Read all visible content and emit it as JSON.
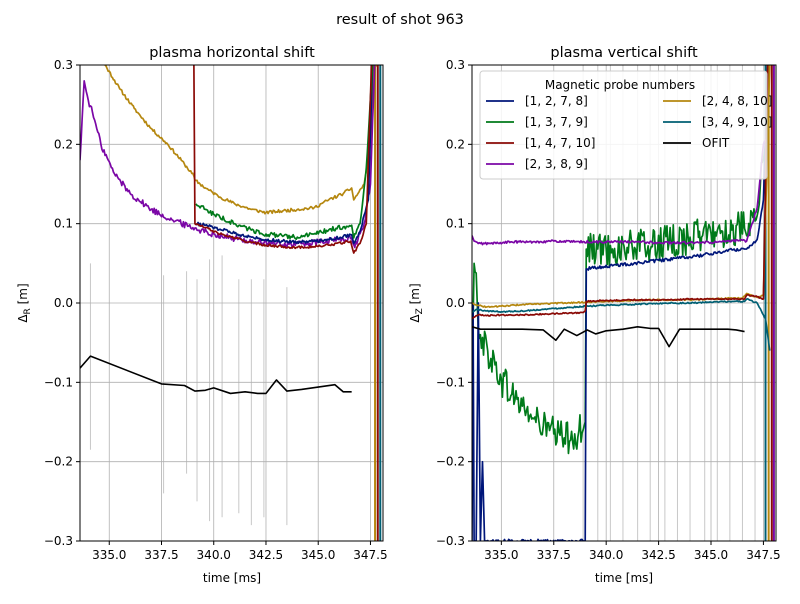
{
  "figure": {
    "suptitle": "result of shot 963"
  },
  "colors": {
    "c1278": "#00167a",
    "c1379": "#007a1a",
    "c14710": "#8a0a06",
    "c2389": "#7b07a6",
    "c24810": "#b5870f",
    "c34910": "#005f73",
    "ofit": "#000000",
    "vlines": "#c8c8c8"
  },
  "chart_data": [
    {
      "type": "line",
      "title": "plasma horizontal shift",
      "xlabel": "time [ms]",
      "ylabel_main": "Δ",
      "ylabel_sub": "R",
      "ylabel_unit": " [m]",
      "xlim": [
        333.6,
        348.1
      ],
      "ylim": [
        -0.3,
        0.3
      ],
      "xticks": [
        335.0,
        337.5,
        340.0,
        342.5,
        345.0,
        347.5
      ],
      "xtick_labels": [
        "335.0",
        "337.5",
        "340.0",
        "342.5",
        "345.0",
        "347.5"
      ],
      "yticks": [
        -0.3,
        -0.2,
        -0.1,
        0.0,
        0.1,
        0.2,
        0.3
      ],
      "ytick_labels": [
        "−0.3",
        "−0.2",
        "−0.1",
        "0.0",
        "0.1",
        "0.2",
        "0.3"
      ],
      "grid": true,
      "vertical_markers": [
        {
          "x": 334.1,
          "y0": -0.185,
          "y1": 0.05
        },
        {
          "x": 337.6,
          "y0": -0.24,
          "y1": 0.035
        },
        {
          "x": 338.7,
          "y0": -0.215,
          "y1": 0.04
        },
        {
          "x": 339.2,
          "y0": -0.25,
          "y1": 0.03
        },
        {
          "x": 339.8,
          "y0": -0.275,
          "y1": 0.055
        },
        {
          "x": 340.4,
          "y0": -0.27,
          "y1": 0.06
        },
        {
          "x": 341.2,
          "y0": -0.265,
          "y1": 0.03
        },
        {
          "x": 341.8,
          "y0": -0.28,
          "y1": 0.03
        },
        {
          "x": 342.4,
          "y0": -0.27,
          "y1": 0.03
        },
        {
          "x": 343.5,
          "y0": -0.28,
          "y1": 0.02
        }
      ],
      "series": [
        {
          "name": "[2, 4, 8, 10]",
          "color_key": "c24810",
          "noise": 0.002,
          "x": [
            333.8,
            334.3,
            334.8,
            335.5,
            336.2,
            337.0,
            337.8,
            338.6,
            339.05,
            339.1,
            339.6,
            340.2,
            341.0,
            341.8,
            342.5,
            343.3,
            344.0,
            344.8,
            345.5,
            346.2,
            346.6,
            346.7,
            347.2,
            347.5,
            347.65,
            347.8
          ],
          "y": [
            0.33,
            0.32,
            0.3,
            0.27,
            0.245,
            0.22,
            0.2,
            0.175,
            0.16,
            0.155,
            0.145,
            0.135,
            0.125,
            0.118,
            0.114,
            0.116,
            0.118,
            0.12,
            0.13,
            0.138,
            0.145,
            0.13,
            0.15,
            0.2,
            0.3,
            0.3
          ]
        },
        {
          "name": "[2, 3, 8, 9]",
          "color_key": "c2389",
          "noise": 0.004,
          "x": [
            333.6,
            333.8,
            334.0,
            334.2,
            334.6,
            335.2,
            336.0,
            337.0,
            338.0,
            339.0,
            340.0,
            341.0,
            342.0,
            342.8,
            343.6,
            344.4,
            345.2,
            346.0,
            346.6,
            346.75,
            347.2,
            347.5,
            347.7
          ],
          "y": [
            0.18,
            0.28,
            0.255,
            0.24,
            0.2,
            0.165,
            0.138,
            0.118,
            0.105,
            0.095,
            0.087,
            0.081,
            0.077,
            0.075,
            0.074,
            0.075,
            0.077,
            0.08,
            0.082,
            0.07,
            0.1,
            0.15,
            0.3
          ]
        },
        {
          "name": "[1, 2, 7, 8]",
          "color_key": "c1278",
          "noise": 0.002,
          "x": [
            339.15,
            339.6,
            340.3,
            341.0,
            341.8,
            342.5,
            343.3,
            344.0,
            344.8,
            345.5,
            346.2,
            346.6,
            346.7,
            347.0,
            347.4,
            347.6
          ],
          "y": [
            0.1,
            0.098,
            0.093,
            0.088,
            0.083,
            0.08,
            0.078,
            0.077,
            0.078,
            0.08,
            0.084,
            0.086,
            0.075,
            0.09,
            0.13,
            0.3
          ]
        },
        {
          "name": "[1, 3, 7, 9]",
          "color_key": "c1379",
          "noise": 0.003,
          "x": [
            339.15,
            339.6,
            340.3,
            341.0,
            341.8,
            342.5,
            343.3,
            344.0,
            344.8,
            345.5,
            346.2,
            346.6,
            346.7,
            347.0,
            347.3,
            347.6
          ],
          "y": [
            0.125,
            0.118,
            0.108,
            0.1,
            0.092,
            0.087,
            0.084,
            0.083,
            0.087,
            0.092,
            0.096,
            0.098,
            0.082,
            0.1,
            0.17,
            0.3
          ]
        },
        {
          "name": "[1, 4, 7, 10]",
          "color_key": "c14710",
          "noise": 0.0015,
          "x": [
            339.05,
            339.1,
            339.6,
            340.3,
            341.0,
            341.8,
            342.5,
            343.3,
            344.0,
            344.8,
            345.5,
            346.2,
            346.55,
            346.7,
            347.0,
            347.3,
            347.55
          ],
          "y": [
            0.3,
            0.1,
            0.095,
            0.087,
            0.082,
            0.076,
            0.073,
            0.071,
            0.07,
            0.071,
            0.073,
            0.076,
            0.078,
            0.063,
            0.075,
            0.1,
            0.3
          ]
        },
        {
          "name": "[3, 4, 9, 10]",
          "color_key": "c34910",
          "noise": 0,
          "x": [],
          "y": []
        },
        {
          "name": "OFIT",
          "color_key": "ofit",
          "noise": 0,
          "x": [
            333.6,
            334.1,
            337.5,
            338.6,
            339.1,
            339.6,
            340.0,
            340.8,
            341.5,
            342.1,
            342.5,
            343.0,
            343.5,
            344.2,
            345.0,
            345.8,
            346.2,
            346.6
          ],
          "y": [
            -0.082,
            -0.067,
            -0.102,
            -0.104,
            -0.111,
            -0.11,
            -0.107,
            -0.114,
            -0.112,
            -0.114,
            -0.114,
            -0.097,
            -0.111,
            -0.109,
            -0.106,
            -0.103,
            -0.112,
            -0.112
          ]
        }
      ],
      "edge_lines": [
        {
          "color_key": "c24810",
          "x": 347.72
        },
        {
          "color_key": "c14710",
          "x": 347.85
        },
        {
          "color_key": "c34910",
          "x": 347.97
        }
      ]
    },
    {
      "type": "line",
      "title": "plasma vertical shift",
      "xlabel": "time [ms]",
      "ylabel_main": "Δ",
      "ylabel_sub": "Z",
      "ylabel_unit": " [m]",
      "xlim": [
        333.6,
        348.1
      ],
      "ylim": [
        -0.3,
        0.3
      ],
      "xticks": [
        335.0,
        337.5,
        340.0,
        342.5,
        345.0,
        347.5
      ],
      "xtick_labels": [
        "335.0",
        "337.5",
        "340.0",
        "342.5",
        "345.0",
        "347.5"
      ],
      "yticks": [
        -0.3,
        -0.2,
        -0.1,
        0.0,
        0.1,
        0.2,
        0.3
      ],
      "ytick_labels": [
        "−0.3",
        "−0.2",
        "−0.1",
        "0.0",
        "0.1",
        "0.2",
        "0.3"
      ],
      "grid": true,
      "vertical_markers": [
        {
          "x": 338.9,
          "y0": -0.3,
          "y1": 0.3
        },
        {
          "x": 339.6,
          "y0": -0.3,
          "y1": 0.3
        },
        {
          "x": 340.2,
          "y0": -0.3,
          "y1": 0.3
        },
        {
          "x": 340.8,
          "y0": -0.3,
          "y1": 0.3
        },
        {
          "x": 341.5,
          "y0": -0.3,
          "y1": 0.3
        },
        {
          "x": 342.1,
          "y0": -0.3,
          "y1": 0.3
        },
        {
          "x": 342.8,
          "y0": -0.3,
          "y1": 0.3
        },
        {
          "x": 343.4,
          "y0": -0.3,
          "y1": 0.3
        },
        {
          "x": 344.0,
          "y0": -0.3,
          "y1": 0.3
        },
        {
          "x": 344.7,
          "y0": -0.3,
          "y1": 0.3
        },
        {
          "x": 345.3,
          "y0": -0.3,
          "y1": 0.3
        },
        {
          "x": 345.9,
          "y0": -0.3,
          "y1": 0.3
        },
        {
          "x": 346.5,
          "y0": -0.3,
          "y1": 0.3
        },
        {
          "x": 347.1,
          "y0": -0.3,
          "y1": 0.3
        }
      ],
      "legend": {
        "title": "Magnetic probe numbers",
        "location": "upper center",
        "columns": [
          [
            "[1, 2, 7, 8]",
            "[1, 3, 7, 9]",
            "[1, 4, 7, 10]",
            "[2, 3, 8, 9]"
          ],
          [
            "[2, 4, 8, 10]",
            "[3, 4, 9, 10]",
            "OFIT"
          ]
        ]
      },
      "series": [
        {
          "name": "[1, 3, 7, 9]",
          "color_key": "c1379",
          "noise": 0.022,
          "x": [
            333.6,
            333.7,
            333.85,
            334.0,
            334.5,
            335.0,
            335.5,
            336.0,
            336.5,
            337.0,
            337.5,
            338.0,
            338.5,
            338.9,
            339.0,
            339.05,
            339.6,
            340.3,
            341.0,
            342.0,
            343.0,
            344.0,
            345.0,
            346.0,
            346.6,
            346.7,
            347.2,
            347.6
          ],
          "y": [
            -0.1,
            0.05,
            0.0,
            -0.04,
            -0.07,
            -0.095,
            -0.115,
            -0.13,
            -0.145,
            -0.155,
            -0.165,
            -0.17,
            -0.165,
            -0.16,
            -0.15,
            0.068,
            0.068,
            0.068,
            0.07,
            0.072,
            0.076,
            0.083,
            0.088,
            0.092,
            0.094,
            0.085,
            0.11,
            0.2
          ]
        },
        {
          "name": "[1, 2, 7, 8]",
          "color_key": "c1278",
          "noise": 0.002,
          "x": [
            333.6,
            333.65,
            333.7,
            333.8,
            333.9,
            334.0,
            334.1,
            334.2,
            334.3,
            334.5,
            338.9,
            339.0,
            339.05,
            339.6,
            340.3,
            341.0,
            342.0,
            343.0,
            344.0,
            345.0,
            346.0,
            346.6,
            346.7,
            347.2,
            347.5,
            347.7
          ],
          "y": [
            -0.3,
            0.0,
            -0.3,
            -0.3,
            0.0,
            -0.3,
            -0.2,
            -0.3,
            -0.3,
            -0.3,
            -0.3,
            -0.3,
            0.043,
            0.045,
            0.047,
            0.049,
            0.052,
            0.055,
            0.058,
            0.062,
            0.067,
            0.068,
            0.068,
            0.08,
            0.13,
            0.3
          ]
        },
        {
          "name": "[2, 3, 8, 9]",
          "color_key": "c2389",
          "noise": 0.0015,
          "x": [
            333.6,
            333.7,
            333.9,
            334.5,
            335.5,
            336.5,
            337.5,
            338.5,
            339.5,
            340.5,
            341.5,
            342.5,
            343.5,
            344.5,
            345.5,
            346.5,
            346.7,
            347.2,
            347.5,
            347.7
          ],
          "y": [
            0.085,
            0.078,
            0.075,
            0.075,
            0.077,
            0.077,
            0.078,
            0.077,
            0.077,
            0.077,
            0.077,
            0.076,
            0.076,
            0.076,
            0.077,
            0.079,
            0.078,
            0.12,
            0.2,
            0.21
          ]
        },
        {
          "name": "[2, 4, 8, 10]",
          "color_key": "c24810",
          "noise": 0.0008,
          "x": [
            333.6,
            333.9,
            334.3,
            335.0,
            336.0,
            337.0,
            338.0,
            339.0,
            340.0,
            341.0,
            342.0,
            343.0,
            344.0,
            345.0,
            346.0,
            346.5,
            346.7,
            347.2,
            347.5,
            347.8
          ],
          "y": [
            0.0,
            -0.003,
            -0.005,
            -0.004,
            -0.002,
            -0.001,
            0.0,
            0.001,
            0.002,
            0.003,
            0.004,
            0.004,
            0.004,
            0.005,
            0.006,
            0.006,
            0.012,
            0.007,
            0.01,
            0.3
          ]
        },
        {
          "name": "[3, 4, 9, 10]",
          "color_key": "c34910",
          "noise": 0.0008,
          "x": [
            333.6,
            333.8,
            334.3,
            335.0,
            336.0,
            337.0,
            338.0,
            339.0,
            340.0,
            341.0,
            342.0,
            343.0,
            344.0,
            345.0,
            346.0,
            346.6,
            346.7,
            347.2,
            347.6,
            347.8
          ],
          "y": [
            -0.012,
            -0.008,
            -0.01,
            -0.011,
            -0.01,
            -0.008,
            -0.006,
            -0.004,
            -0.003,
            -0.002,
            -0.001,
            0.0,
            0.0,
            0.001,
            0.002,
            0.002,
            0.005,
            0.0,
            -0.02,
            -0.06
          ]
        },
        {
          "name": "[1, 4, 7, 10]",
          "color_key": "c14710",
          "noise": 0.0008,
          "x": [
            333.6,
            333.9,
            334.3,
            335.0,
            336.0,
            337.0,
            338.0,
            338.9,
            339.0,
            339.05,
            339.6,
            340.3,
            341.0,
            342.0,
            343.0,
            344.0,
            345.0,
            346.0,
            346.6,
            346.7,
            347.2,
            347.5,
            347.7
          ],
          "y": [
            -0.02,
            -0.015,
            -0.016,
            -0.015,
            -0.015,
            -0.014,
            -0.013,
            -0.012,
            -0.01,
            0.002,
            0.003,
            0.003,
            0.004,
            0.004,
            0.004,
            0.005,
            0.005,
            0.005,
            0.005,
            0.01,
            0.008,
            0.005,
            0.3
          ]
        },
        {
          "name": "OFIT",
          "color_key": "ofit",
          "noise": 0,
          "x": [
            333.6,
            334.0,
            335.0,
            336.0,
            337.0,
            337.6,
            338.0,
            338.6,
            339.1,
            339.5,
            340.0,
            340.8,
            341.5,
            342.1,
            342.5,
            343.0,
            343.5,
            344.2,
            345.0,
            345.8,
            346.2,
            346.6
          ],
          "y": [
            -0.03,
            -0.033,
            -0.033,
            -0.033,
            -0.034,
            -0.047,
            -0.033,
            -0.041,
            -0.034,
            -0.039,
            -0.035,
            -0.033,
            -0.03,
            -0.032,
            -0.032,
            -0.055,
            -0.033,
            -0.033,
            -0.033,
            -0.033,
            -0.034,
            -0.036
          ]
        }
      ],
      "edge_lines": [
        {
          "color_key": "c34910",
          "x": 347.6
        },
        {
          "color_key": "c24810",
          "x": 347.75
        },
        {
          "color_key": "c14710",
          "x": 347.9
        },
        {
          "color_key": "c2389",
          "x": 348.0
        }
      ]
    }
  ]
}
